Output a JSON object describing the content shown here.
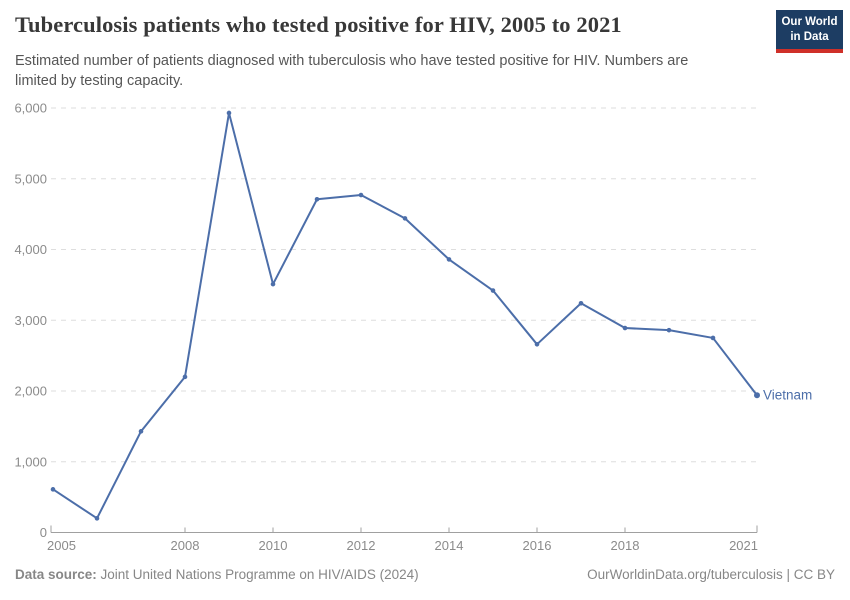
{
  "header": {
    "title": "Tuberculosis patients who tested positive for HIV, 2005 to 2021",
    "subtitle": "Estimated number of patients diagnosed with tuberculosis who have tested positive for HIV. Numbers are limited by testing capacity.",
    "logo_line1": "Our World",
    "logo_line2": "in Data"
  },
  "footer": {
    "source_label": "Data source:",
    "source_text": " Joint United Nations Programme on HIV/AIDS (2024)",
    "credit": "OurWorldinData.org/tuberculosis | CC BY"
  },
  "chart_data": {
    "type": "line",
    "title": "Tuberculosis patients who tested positive for HIV, 2005 to 2021",
    "x": [
      2005,
      2006,
      2007,
      2008,
      2009,
      2010,
      2011,
      2012,
      2013,
      2014,
      2015,
      2016,
      2017,
      2018,
      2019,
      2020,
      2021
    ],
    "series": [
      {
        "name": "Vietnam",
        "values": [
          610,
          200,
          1430,
          2200,
          5930,
          3510,
          4710,
          4770,
          4440,
          3860,
          3420,
          2660,
          3240,
          2890,
          2860,
          2750,
          1940
        ]
      }
    ],
    "end_label": "Vietnam",
    "xlabel": "",
    "ylabel": "",
    "xlim": [
      2005,
      2021
    ],
    "ylim": [
      0,
      6000
    ],
    "x_ticks": [
      2005,
      2008,
      2010,
      2012,
      2014,
      2016,
      2018,
      2021
    ],
    "y_ticks": [
      0,
      1000,
      2000,
      3000,
      4000,
      5000,
      6000
    ],
    "grid": "horizontal-dashed",
    "legend_position": "end-of-line",
    "colors": {
      "line": "#4c6ea9",
      "grid": "#dedede",
      "axis": "#a0a0a0",
      "tick_label": "#8b8b8b"
    }
  }
}
